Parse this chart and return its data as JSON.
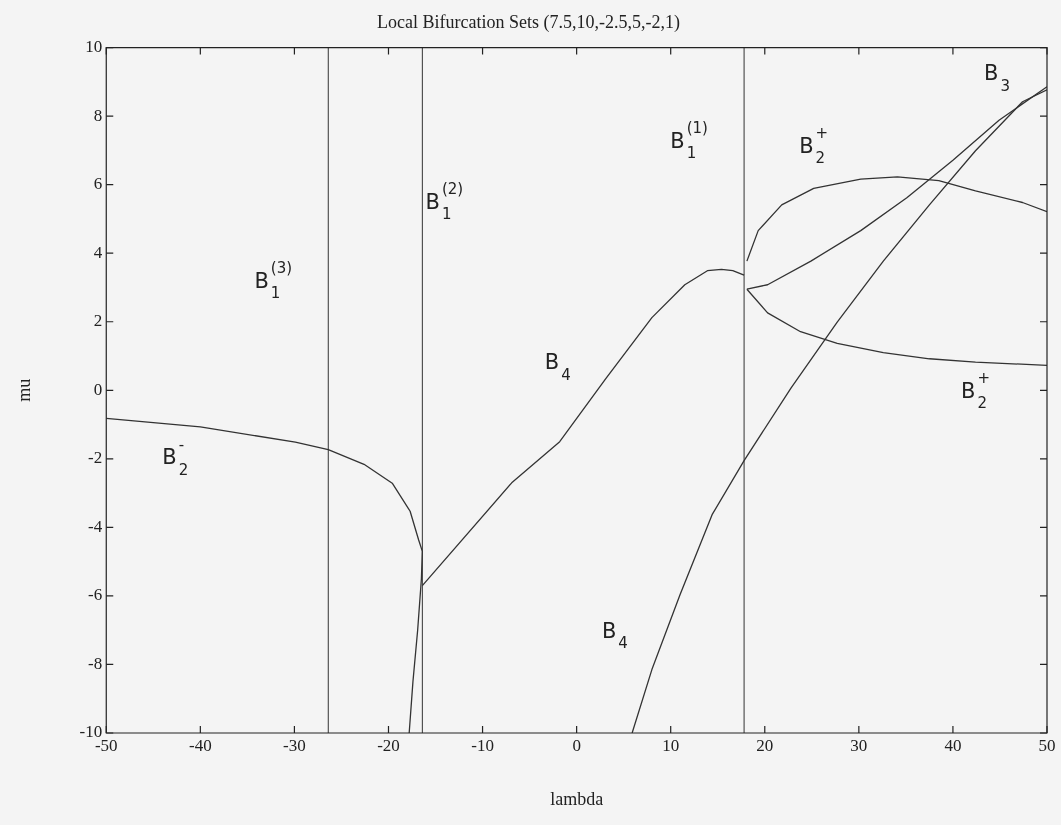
{
  "chart_data": {
    "type": "line",
    "title": "Local Bifurcation Sets (7.5,10,-2.5,5,-2,1)",
    "xlabel": "lambda",
    "ylabel": "mu",
    "xlim": [
      -50,
      50
    ],
    "xticks": [
      -50,
      -40,
      -30,
      -20,
      -10,
      0,
      10,
      20,
      30,
      40,
      50
    ],
    "ylim": [
      -10,
      10
    ],
    "yticks": [
      -10,
      -8,
      -6,
      -4,
      -2,
      0,
      2,
      4,
      6,
      8,
      10
    ],
    "grid": false,
    "legend": false,
    "marker": "none",
    "line_style": "solid",
    "series": [
      {
        "name": "B$_{2}$$^{-}$",
        "color": "#333333",
        "x": [
          -50,
          -40,
          -29.9,
          -26.4,
          -22.6,
          -19.6,
          -17.7,
          -16.8,
          -16.4,
          -16.5,
          -16.9,
          -17.4,
          -17.8
        ],
        "values": [
          -0.82,
          -1.07,
          -1.51,
          -1.73,
          -2.16,
          -2.71,
          -3.53,
          -4.36,
          -4.7,
          -5.5,
          -7,
          -8.5,
          -10
        ]
      },
      {
        "name": "B$_{4}$",
        "color": "#333333",
        "x": [
          -16.4,
          -6.9,
          -1.8,
          3.1,
          8.0,
          11.5,
          13.9,
          15.4,
          16.6,
          17.8
        ],
        "values": [
          -5.7,
          -2.7,
          -1.5,
          0.34,
          2.12,
          3.08,
          3.49,
          3.53,
          3.49,
          3.36
        ]
      },
      {
        "name": "B$_{4}$",
        "color": "#333333",
        "x": [
          5.9,
          8.0,
          11.0,
          14.4,
          17.8,
          22.8,
          27.7,
          32.6,
          37.5,
          42.4,
          47.4,
          50
        ],
        "values": [
          -10,
          -8.15,
          -5.96,
          -3.63,
          -2.05,
          0.07,
          1.99,
          3.77,
          5.41,
          6.99,
          8.42,
          8.77
        ]
      },
      {
        "name": "B$_{3}$",
        "color": "#333333",
        "x": [
          18.1,
          20.3,
          24.9,
          30.2,
          35.1,
          40,
          44.9,
          50
        ],
        "values": [
          2.95,
          3.08,
          3.77,
          4.66,
          5.62,
          6.71,
          7.88,
          8.86
        ]
      },
      {
        "name": "B$_{2}$$^{+}$",
        "color": "#333333",
        "x": [
          18.1,
          19.3,
          21.8,
          25.2,
          30.2,
          34.1,
          38.5,
          42.4,
          47.4,
          50
        ],
        "values": [
          3.77,
          4.66,
          5.41,
          5.89,
          6.16,
          6.23,
          6.12,
          5.82,
          5.48,
          5.21
        ]
      },
      {
        "name": "B$_{2}$$^{+}$",
        "color": "#333333",
        "x": [
          18.1,
          20.3,
          23.8,
          27.7,
          32.6,
          37.5,
          42.4,
          50
        ],
        "values": [
          2.95,
          2.26,
          1.71,
          1.37,
          1.1,
          0.92,
          0.82,
          0.73
        ]
      }
    ],
    "ref_lines": [
      {
        "axis": "x",
        "value": -26.4,
        "color": "#333333",
        "label": "B$_{1}$$^{(3)}$"
      },
      {
        "axis": "x",
        "value": -16.4,
        "color": "#333333",
        "label": "B$_{1}$$^{(2)}$"
      },
      {
        "axis": "x",
        "value": 17.8,
        "color": "#333333",
        "label": "B$_{1}$$^{(1)}$"
      }
    ]
  }
}
